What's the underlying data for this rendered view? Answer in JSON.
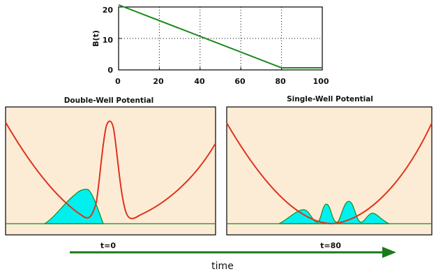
{
  "top_plot": {
    "ylabel": "B(t)",
    "x_ticks": [
      "0",
      "20",
      "40",
      "60",
      "80",
      "100"
    ],
    "y_ticks": [
      "0",
      "10",
      "20"
    ]
  },
  "panels": {
    "left_title": "Double-Well Potential",
    "right_title": "Single-Well Potential",
    "left_label": "t=0",
    "right_label": "t=80"
  },
  "arrow_label": "time",
  "colors": {
    "curve": "#e0321a",
    "wave_fill": "#00f0f0",
    "baseline": "#1a8a1a",
    "panel_bg": "#fcecd6",
    "line": "#1a8a1a"
  },
  "chart_data": {
    "type": "line",
    "title": "",
    "xlabel": "",
    "ylabel": "B(t)",
    "xlim": [
      0,
      100
    ],
    "ylim": [
      0,
      20
    ],
    "x_ticks": [
      0,
      20,
      40,
      60,
      80,
      100
    ],
    "y_ticks": [
      0,
      10,
      20
    ],
    "grid": true,
    "series": [
      {
        "x": [
          0,
          80,
          100
        ],
        "y": [
          20,
          0,
          0
        ]
      }
    ]
  }
}
